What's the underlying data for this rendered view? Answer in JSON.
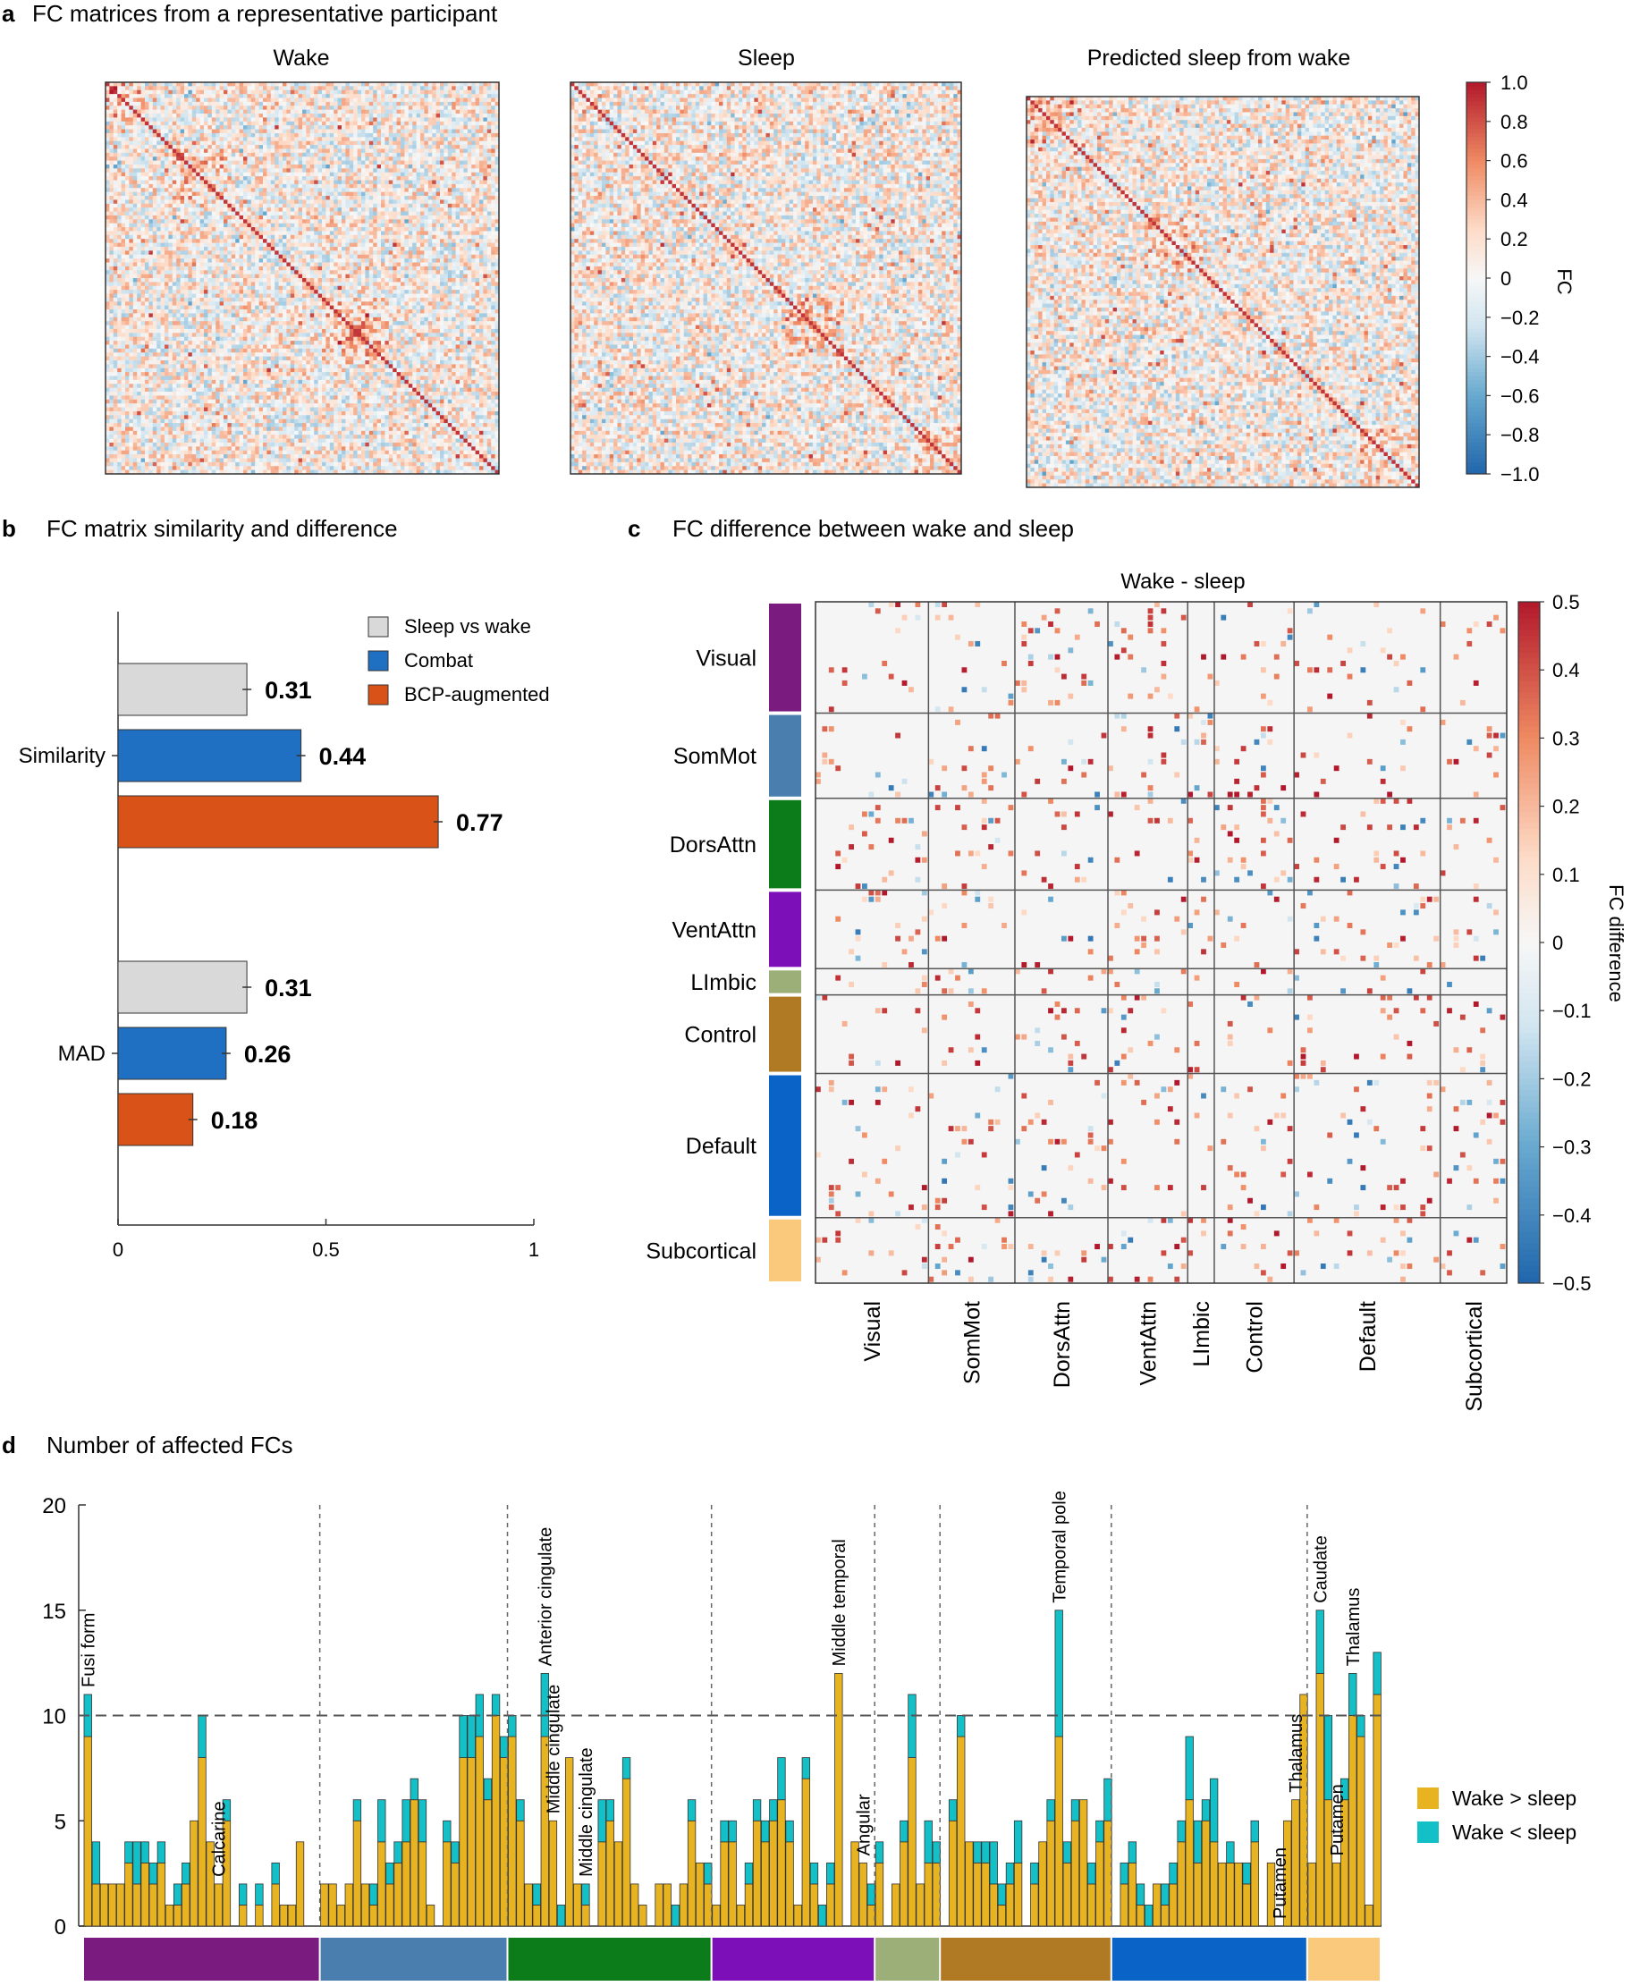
{
  "panels": {
    "a": {
      "letter": "a",
      "title": "FC matrices from a representative participant",
      "matrices": [
        "Wake",
        "Sleep",
        "Predicted sleep from wake"
      ],
      "colorbar": {
        "label": "FC",
        "ticks": [
          "1.0",
          "0.8",
          "0.6",
          "0.4",
          "0.2",
          "0",
          "−0.2",
          "−0.4",
          "−0.6",
          "−0.8",
          "−1.0"
        ],
        "range": [
          -1.0,
          1.0
        ]
      }
    },
    "b": {
      "letter": "b",
      "title": "FC matrix similarity and difference",
      "xticks": [
        "0",
        "0.5",
        "1"
      ],
      "xlim": [
        0,
        1
      ],
      "legend": [
        {
          "label": "Sleep vs wake",
          "color": "#d9d9d9"
        },
        {
          "label": "Combat",
          "color": "#1f6fc2"
        },
        {
          "label": "BCP-augmented",
          "color": "#d95319"
        }
      ]
    },
    "c": {
      "letter": "c",
      "title": "FC difference between wake and sleep",
      "heatmap_title": "Wake - sleep",
      "colorbar": {
        "label": "FC difference",
        "ticks": [
          "0.5",
          "0.4",
          "0.3",
          "0.2",
          "0.1",
          "0",
          "−0.1",
          "−0.2",
          "−0.3",
          "−0.4",
          "−0.5"
        ],
        "range": [
          -0.5,
          0.5
        ]
      }
    },
    "d": {
      "letter": "d",
      "title": "Number of affected FCs",
      "yticks": [
        "20",
        "15",
        "10",
        "5",
        "0"
      ],
      "legend": [
        {
          "label": "Wake > sleep",
          "color": "#e8b321"
        },
        {
          "label": "Wake < sleep",
          "color": "#14c0c8"
        }
      ]
    }
  },
  "networks": [
    {
      "name": "Visual",
      "label": "Visual",
      "color": "#7a1c7f"
    },
    {
      "name": "SomMot",
      "label": "SomMot",
      "color": "#4a7eae"
    },
    {
      "name": "DorsAttn",
      "label": "DorsAttn",
      "color": "#0c7c1a"
    },
    {
      "name": "VentAttn",
      "label": "VentAttn",
      "color": "#7c0fb8"
    },
    {
      "name": "Limbic",
      "label": "LImbic",
      "color": "#9caf78"
    },
    {
      "name": "Control",
      "label": "Control",
      "color": "#b07a24"
    },
    {
      "name": "Default",
      "label": "Default",
      "color": "#0a63c6"
    },
    {
      "name": "Subcortical",
      "label": "Subcortical",
      "color": "#fbc97c"
    }
  ],
  "chart_data": [
    {
      "type": "heatmap",
      "title": "Wake",
      "colorbar_label": "FC",
      "zlim": [
        -1.0,
        1.0
      ]
    },
    {
      "type": "heatmap",
      "title": "Sleep",
      "colorbar_label": "FC",
      "zlim": [
        -1.0,
        1.0
      ]
    },
    {
      "type": "heatmap",
      "title": "Predicted sleep from wake",
      "colorbar_label": "FC",
      "zlim": [
        -1.0,
        1.0
      ]
    },
    {
      "type": "bar",
      "orientation": "horizontal",
      "title": "FC matrix similarity and difference",
      "categories": [
        "Similarity",
        "MAD"
      ],
      "series": [
        {
          "name": "Sleep vs wake",
          "values": [
            0.31,
            0.31
          ],
          "labels": [
            "0.31",
            "0.31"
          ]
        },
        {
          "name": "Combat",
          "values": [
            0.44,
            0.26
          ],
          "labels": [
            "0.44",
            "0.26"
          ]
        },
        {
          "name": "BCP-augmented",
          "values": [
            0.77,
            0.18
          ],
          "labels": [
            "0.77",
            "0.18"
          ]
        }
      ],
      "xlim": [
        0,
        1
      ]
    },
    {
      "type": "heatmap",
      "title": "Wake - sleep",
      "row_groups": [
        "Visual",
        "SomMot",
        "DorsAttn",
        "VentAttn",
        "LImbic",
        "Control",
        "Default",
        "Subcortical"
      ],
      "col_groups": [
        "Visual",
        "SomMot",
        "DorsAttn",
        "VentAttn",
        "LImbic",
        "Control",
        "Default",
        "Subcortical"
      ],
      "colorbar_label": "FC difference",
      "zlim": [
        -0.5,
        0.5
      ]
    },
    {
      "type": "bar",
      "stacked": true,
      "title": "Number of affected FCs",
      "ylim": [
        0,
        20
      ],
      "threshold": 10,
      "series": [
        {
          "name": "Wake > sleep",
          "values": [
            9,
            2,
            2,
            2,
            2,
            3,
            2,
            3,
            2,
            3,
            1,
            1,
            2,
            5,
            8,
            4,
            2,
            5,
            0,
            1,
            0,
            1,
            0,
            2,
            1,
            1,
            4,
            0,
            0,
            2,
            2,
            1,
            2,
            5,
            2,
            1,
            4,
            2,
            3,
            4,
            6,
            4,
            1,
            0,
            4,
            3,
            8,
            8,
            9,
            6,
            10,
            8,
            9,
            5,
            2,
            1,
            9,
            5,
            0,
            8,
            2,
            1,
            0,
            4,
            5,
            4,
            7,
            2,
            1,
            0,
            2,
            2,
            0,
            2,
            5,
            3,
            2,
            1,
            4,
            4,
            1,
            2,
            5,
            4,
            5,
            6,
            4,
            1,
            7,
            2,
            0,
            2,
            12,
            0,
            4,
            3,
            1,
            3,
            0,
            2,
            4,
            8,
            2,
            3,
            3,
            0,
            5,
            9,
            4,
            3,
            3,
            2,
            1,
            2,
            3,
            0,
            2,
            4,
            5,
            9,
            3,
            5,
            6,
            2,
            4,
            5,
            0,
            2,
            3,
            1,
            0,
            2,
            1,
            2,
            4,
            6,
            3,
            5,
            4,
            3,
            3,
            3,
            2,
            4,
            0,
            3,
            0,
            5,
            6,
            11,
            3,
            12,
            6,
            3,
            6,
            10,
            9,
            1,
            11
          ]
        },
        {
          "name": "Wake < sleep",
          "values": [
            2,
            2,
            0,
            0,
            0,
            1,
            2,
            1,
            1,
            1,
            0,
            1,
            1,
            0,
            2,
            0,
            0,
            1,
            0,
            1,
            0,
            1,
            0,
            1,
            0,
            0,
            0,
            0,
            0,
            0,
            0,
            0,
            0,
            1,
            0,
            1,
            2,
            1,
            1,
            2,
            1,
            2,
            0,
            0,
            1,
            1,
            2,
            2,
            2,
            1,
            1,
            1,
            1,
            1,
            0,
            1,
            3,
            0,
            1,
            0,
            0,
            1,
            0,
            2,
            1,
            0,
            1,
            0,
            0,
            0,
            0,
            0,
            1,
            0,
            1,
            0,
            1,
            0,
            1,
            1,
            0,
            1,
            1,
            1,
            1,
            2,
            1,
            0,
            1,
            1,
            1,
            1,
            0,
            0,
            0,
            0,
            1,
            1,
            0,
            0,
            1,
            3,
            0,
            2,
            1,
            0,
            1,
            1,
            0,
            1,
            1,
            2,
            1,
            1,
            2,
            0,
            1,
            0,
            1,
            6,
            1,
            1,
            0,
            1,
            1,
            2,
            0,
            1,
            1,
            1,
            1,
            0,
            1,
            1,
            1,
            3,
            2,
            1,
            3,
            0,
            1,
            0,
            1,
            1,
            0,
            0,
            0,
            0,
            0,
            0,
            0,
            3,
            4,
            0,
            1,
            2,
            1,
            0,
            2
          ]
        }
      ],
      "annotations": [
        "Fusi form",
        "Calcarine",
        "Anterior cingulate",
        "Middle cingulate",
        "Middle cingulate",
        "Middle temporal",
        "Angular",
        "Temporal pole",
        "Putamen",
        "Thalamus",
        "Caudate",
        "Putamen",
        "Thalamus"
      ],
      "annotation_bars": [
        0,
        16,
        56,
        57,
        61,
        92,
        95,
        119,
        146,
        148,
        151,
        153,
        155
      ]
    }
  ]
}
